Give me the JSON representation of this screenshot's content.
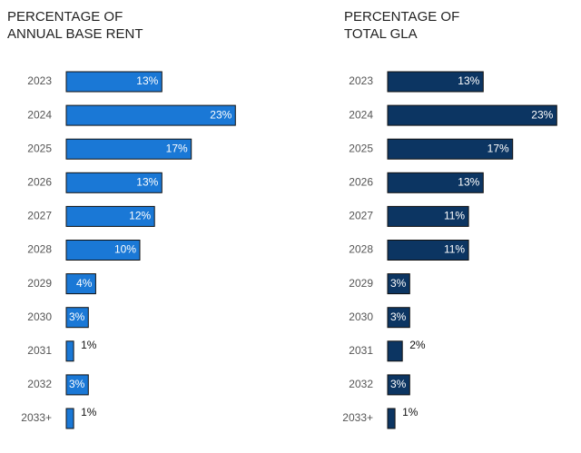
{
  "chart_data": [
    {
      "type": "barh",
      "title": "PERCENTAGE OF ANNUAL BASE RENT",
      "color": "#1a78d6",
      "categories": [
        "2023",
        "2024",
        "2025",
        "2026",
        "2027",
        "2028",
        "2029",
        "2030",
        "2031",
        "2032",
        "2033+"
      ],
      "values": [
        13,
        23,
        17,
        13,
        12,
        10,
        4,
        3,
        1,
        3,
        1
      ],
      "value_labels": [
        "13%",
        "23%",
        "17%",
        "13%",
        "12%",
        "10%",
        "4%",
        "3%",
        "1%",
        "3%",
        "1%"
      ]
    },
    {
      "type": "barh",
      "title": "PERCENTAGE OF TOTAL GLA",
      "color": "#0c3562",
      "categories": [
        "2023",
        "2024",
        "2025",
        "2026",
        "2027",
        "2028",
        "2029",
        "2030",
        "2031",
        "2032",
        "2033+"
      ],
      "values": [
        13,
        23,
        17,
        13,
        11,
        11,
        3,
        3,
        2,
        3,
        1
      ],
      "value_labels": [
        "13%",
        "23%",
        "17%",
        "13%",
        "11%",
        "11%",
        "3%",
        "3%",
        "2%",
        "3%",
        "1%"
      ]
    }
  ]
}
